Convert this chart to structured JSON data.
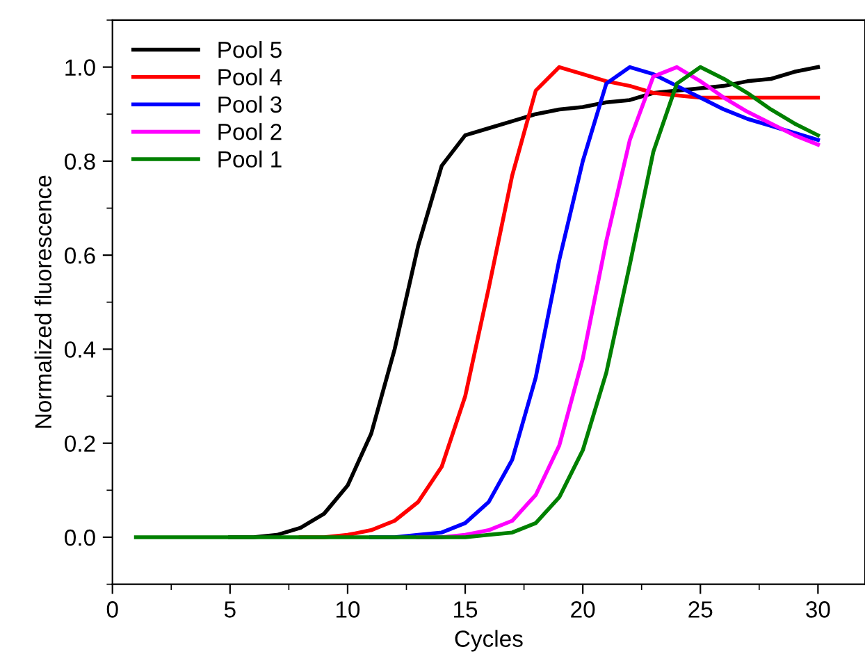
{
  "chart_data": {
    "type": "line",
    "xlabel": "Cycles",
    "ylabel": "Normalized fluorescence",
    "x": [
      1,
      2,
      3,
      4,
      5,
      6,
      7,
      8,
      9,
      10,
      11,
      12,
      13,
      14,
      15,
      16,
      17,
      18,
      19,
      20,
      21,
      22,
      23,
      24,
      25,
      26,
      27,
      28,
      29,
      30
    ],
    "series": [
      {
        "name": "Pool 5",
        "color": "#000000",
        "values": [
          null,
          null,
          null,
          null,
          0,
          0,
          0.005,
          0.02,
          0.05,
          0.11,
          0.22,
          0.4,
          0.62,
          0.79,
          0.855,
          0.87,
          0.885,
          0.9,
          0.91,
          0.915,
          0.925,
          0.93,
          0.945,
          0.95,
          0.955,
          0.96,
          0.97,
          0.975,
          0.99,
          1.0
        ]
      },
      {
        "name": "Pool 4",
        "color": "#ff0000",
        "values": [
          null,
          null,
          null,
          null,
          null,
          null,
          null,
          0,
          0,
          0.005,
          0.015,
          0.035,
          0.075,
          0.15,
          0.3,
          0.53,
          0.77,
          0.95,
          1.0,
          0.985,
          0.97,
          0.96,
          0.945,
          0.94,
          0.935,
          0.935,
          0.935,
          0.935,
          0.935,
          0.935
        ]
      },
      {
        "name": "Pool 3",
        "color": "#0000ff",
        "values": [
          null,
          null,
          null,
          null,
          null,
          null,
          null,
          null,
          null,
          null,
          0,
          0,
          0.005,
          0.01,
          0.03,
          0.075,
          0.165,
          0.34,
          0.59,
          0.8,
          0.965,
          1.0,
          0.985,
          0.96,
          0.935,
          0.91,
          0.89,
          0.875,
          0.86,
          0.845
        ]
      },
      {
        "name": "Pool 2",
        "color": "#ff00ff",
        "values": [
          null,
          null,
          null,
          null,
          null,
          null,
          null,
          null,
          null,
          null,
          null,
          null,
          0,
          0,
          0.005,
          0.015,
          0.035,
          0.09,
          0.195,
          0.38,
          0.63,
          0.845,
          0.98,
          1.0,
          0.97,
          0.935,
          0.905,
          0.88,
          0.855,
          0.835
        ]
      },
      {
        "name": "Pool 1",
        "color": "#008000",
        "values": [
          0,
          0,
          0,
          0,
          0,
          0,
          0,
          0,
          0,
          0,
          0,
          0,
          0,
          0,
          0,
          0.005,
          0.01,
          0.03,
          0.085,
          0.185,
          0.35,
          0.58,
          0.82,
          0.965,
          1.0,
          0.975,
          0.945,
          0.91,
          0.88,
          0.855
        ]
      }
    ],
    "xlim": [
      0,
      32
    ],
    "xticks": [
      0,
      5,
      10,
      15,
      20,
      25,
      30
    ],
    "ylim": [
      -0.1,
      1.1
    ],
    "yticks": [
      {
        "value": 0,
        "label": "0.0"
      },
      {
        "value": 0.2,
        "label": "0.2"
      },
      {
        "value": 0.4,
        "label": "0.4"
      },
      {
        "value": 0.6,
        "label": "0.6"
      },
      {
        "value": 0.8,
        "label": "0.8"
      },
      {
        "value": 1.0,
        "label": "1.0"
      }
    ],
    "legend": "top left",
    "grid": false,
    "marker": "none",
    "line_style": "solid"
  }
}
